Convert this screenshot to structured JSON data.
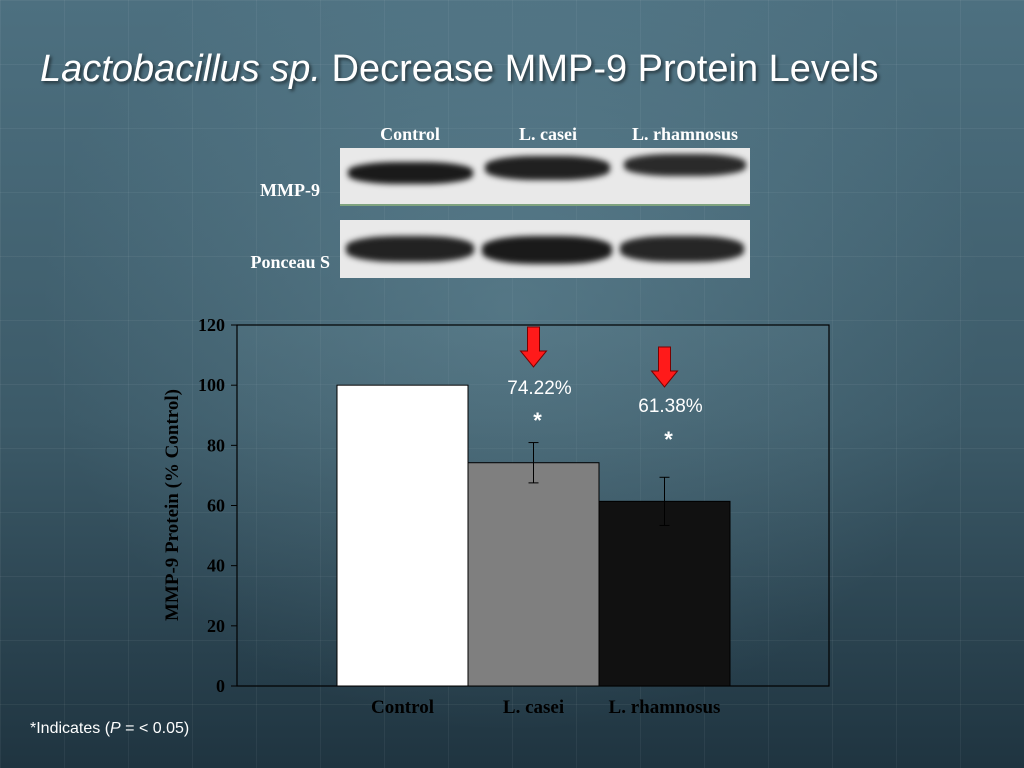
{
  "slide": {
    "title_italic": "Lactobacillus sp.",
    "title_rest": " Decrease MMP-9 Protein Levels"
  },
  "blot": {
    "lane_labels": [
      "Control",
      "L. casei",
      "L. rhamnosus"
    ],
    "row_labels": [
      "MMP-9",
      "Ponceau S"
    ]
  },
  "colors": {
    "control_bar": "#ffffff",
    "casei_bar": "#7f7f7f",
    "rhamnosus_bar": "#111111",
    "arrow": "#ff1a1a"
  },
  "chart_data": {
    "type": "bar",
    "categories": [
      "Control",
      "L. casei",
      "L. rhamnosus"
    ],
    "values": [
      100,
      74.22,
      61.38
    ],
    "errors": [
      0,
      6.7,
      8.0
    ],
    "ylabel": "MMP-9 Protein (% Control)",
    "ylim": [
      0,
      120
    ],
    "yticks": [
      0,
      20,
      40,
      60,
      80,
      100,
      120
    ],
    "annotations": [
      {
        "category": "L. casei",
        "text": "74.22%",
        "significance": "*",
        "arrow": "down"
      },
      {
        "category": "L. rhamnosus",
        "text": "61.38%",
        "significance": "*",
        "arrow": "down"
      }
    ],
    "grid": false
  },
  "footnote": {
    "prefix": "*Indicates (",
    "p": "P",
    "suffix": " = < 0.05)"
  }
}
